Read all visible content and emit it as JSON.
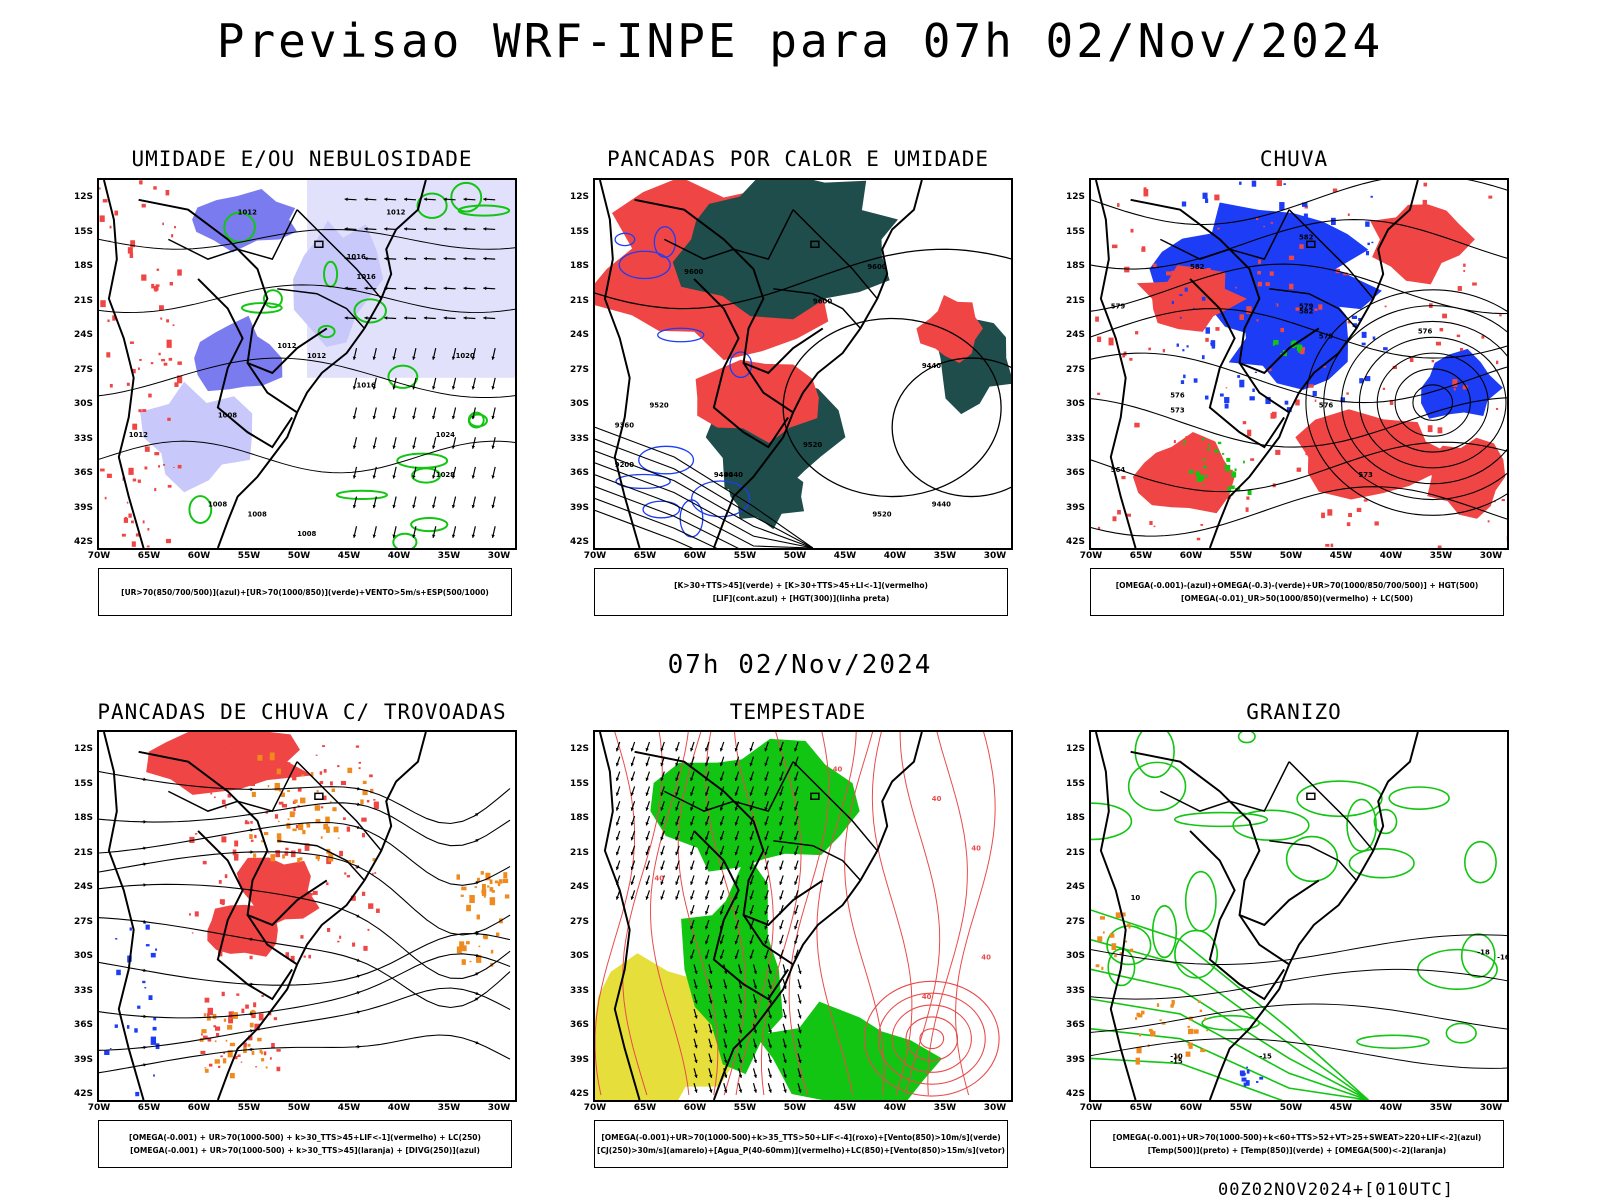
{
  "title": "Previsao WRF-INPE  para 07h 02/Nov/2024",
  "mid_title": "07h 02/Nov/2024",
  "footer": "00Z02NOV2024+[010UTC]",
  "axes": {
    "lat_labels": [
      "12S",
      "15S",
      "18S",
      "21S",
      "24S",
      "27S",
      "30S",
      "33S",
      "36S",
      "39S",
      "42S"
    ],
    "lon_labels": [
      "70W",
      "65W",
      "60W",
      "55W",
      "50W",
      "45W",
      "40W",
      "35W",
      "30W"
    ]
  },
  "colors": {
    "blue_fill": "#7b7bf0",
    "blue_pale": "#c8c8fa",
    "red_fill": "#f04545",
    "dark_teal": "#1e4d4b",
    "green": "#12c512",
    "orange": "#ef8a1e",
    "yellow": "#e6de3a",
    "pure_blue": "#1c3cf5"
  },
  "panels": [
    {
      "id": "umidade",
      "title": "UMIDADE E/OU NEBULOSIDADE",
      "legend": [
        "[UR>70(850/700/500)](azul)+[UR>70(1000/850)](verde)+VENTO>5m/s+ESP(500/1000)"
      ],
      "contour_labels": [
        "1012",
        "1012",
        "1016",
        "1016",
        "1012",
        "1012",
        "1016",
        "1020",
        "1024",
        "1028",
        "1008",
        "1012",
        "1008",
        "1008",
        "1008"
      ]
    },
    {
      "id": "pancadas",
      "title": "PANCADAS POR CALOR E UMIDADE",
      "legend": [
        "[K>30+TTS>45](verde) + [K>30+TTS>45+LI<-1](vermelho)",
        "[LIF](cont.azul) + [HGT(300)](linha preta)"
      ],
      "contour_labels": [
        "9600",
        "9600",
        "9600",
        "9520",
        "9520",
        "9520",
        "9440",
        "9440",
        "9440",
        "9360",
        "9200",
        "9440"
      ]
    },
    {
      "id": "chuva",
      "title": "CHUVA",
      "legend": [
        "[OMEGA(-0.001)-(azul)+OMEGA(-0.3)-(verde)+UR>70(1000/850/700/500)] + HGT(500)",
        "[OMEGA(-0.01)_UR>50(1000/850)(vermelho) + LC(500)"
      ],
      "contour_labels": [
        "582",
        "582",
        "579",
        "576",
        "582",
        "579",
        "576",
        "573",
        "573",
        "576",
        "564",
        "579"
      ]
    },
    {
      "id": "trovoadas",
      "title": "PANCADAS DE CHUVA C/ TROVOADAS",
      "legend": [
        "[OMEGA(-0.001) + UR>70(1000-500) + k>30_TTS>45+LIF<-1](vermelho) + LC(250)",
        "[OMEGA(-0.001) + UR>70(1000-500) + k>30_TTS>45](laranja) + [DIVG(250)](azul)"
      ],
      "contour_labels": []
    },
    {
      "id": "tempestade",
      "title": "TEMPESTADE",
      "legend": [
        "[OMEGA(-0.001)+UR>70(1000-500)+k>35_TTS>50+LIF<-4](roxo)+[Vento(850)>10m/s](verde)",
        "[CJ(250)>30m/s](amarelo)+[Agua_P(40-60mm)](vermelho)+LC(850)+[Vento(850)>15m/s](vetor)"
      ],
      "contour_labels": [
        "40",
        "40",
        "40",
        "40",
        "40",
        "40"
      ]
    },
    {
      "id": "granizo",
      "title": "GRANIZO",
      "legend": [
        "[OMEGA(-0.001)+UR>70(1000-500)+k<60+TTS>52+VT>25+SWEAT>220+LIF<-2](azul)",
        "[Temp(500)](preto) + [Temp(850)](verde) + [OMEGA(500)<-2](laranja)"
      ],
      "contour_labels": [
        "-18",
        "-10",
        "-15",
        "-15",
        "10",
        "-16"
      ]
    }
  ]
}
